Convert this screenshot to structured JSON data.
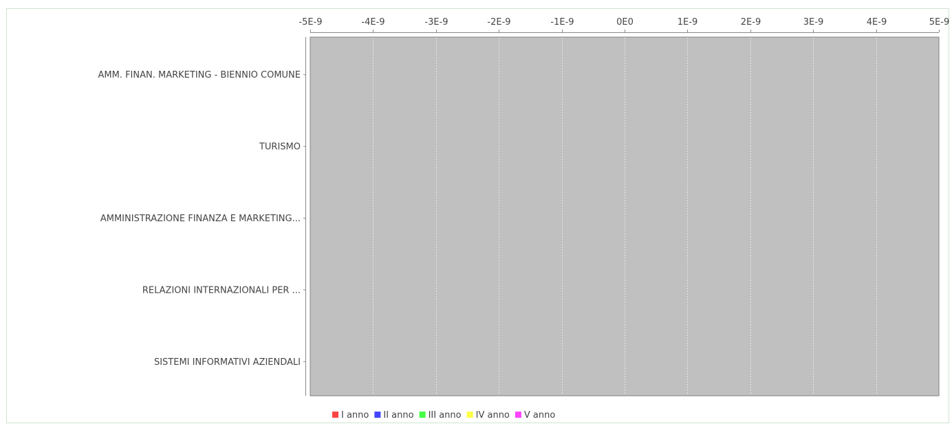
{
  "chart_data": {
    "type": "bar",
    "orientation": "horizontal",
    "categories": [
      "AMM. FINAN. MARKETING - BIENNIO COMUNE",
      "TURISMO",
      "AMMINISTRAZIONE FINANZA E MARKETING...",
      "RELAZIONI INTERNAZIONALI PER ...",
      "SISTEMI INFORMATIVI AZIENDALI"
    ],
    "series": [
      {
        "name": "I anno",
        "values": [
          0,
          0,
          0,
          0,
          0
        ],
        "color": "#ff4444"
      },
      {
        "name": "II anno",
        "values": [
          0,
          0,
          0,
          0,
          0
        ],
        "color": "#4444ff"
      },
      {
        "name": "III anno",
        "values": [
          0,
          0,
          0,
          0,
          0
        ],
        "color": "#44ff44"
      },
      {
        "name": "IV anno",
        "values": [
          0,
          0,
          0,
          0,
          0
        ],
        "color": "#ffff44"
      },
      {
        "name": "V anno",
        "values": [
          0,
          0,
          0,
          0,
          0
        ],
        "color": "#ff44ff"
      }
    ],
    "value_axis": {
      "position": "top",
      "range": [
        -5e-09,
        5e-09
      ],
      "ticks": [
        -5e-09,
        -4e-09,
        -3e-09,
        -2e-09,
        -1e-09,
        0,
        1e-09,
        2e-09,
        3e-09,
        4e-09,
        5e-09
      ],
      "tick_labels": [
        "-5E-9",
        "-4E-9",
        "-3E-9",
        "-2E-9",
        "-1E-9",
        "0E0",
        "1E-9",
        "2E-9",
        "3E-9",
        "4E-9",
        "5E-9"
      ]
    },
    "title": "",
    "xlabel": "",
    "ylabel": "",
    "grid": true,
    "legend": "bottom-center",
    "plot_background": "#c0c0c0",
    "gridline_color": "#e6e6e6"
  }
}
